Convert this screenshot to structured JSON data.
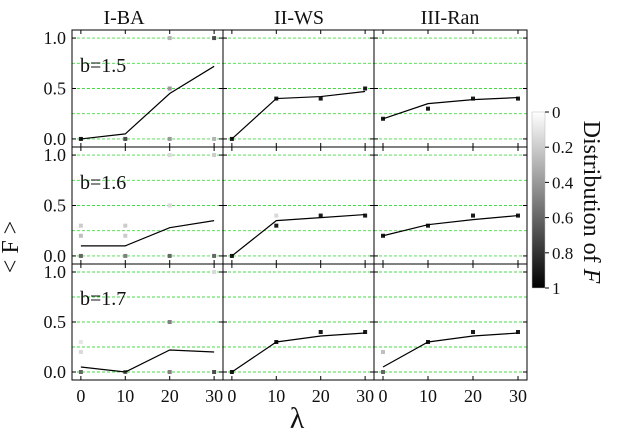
{
  "chart_data": {
    "type": "line",
    "column_titles": [
      "I-BA",
      "II-WS",
      "III-Ran"
    ],
    "row_labels": [
      "b=1.5",
      "b=1.6",
      "b=1.7"
    ],
    "xlabel": "λ",
    "ylabel": "< F >",
    "x_ticks": [
      "0",
      "10",
      "20",
      "30"
    ],
    "y_ticks": [
      "0.0",
      "0.5",
      "1.0"
    ],
    "xlim": [
      -2,
      32
    ],
    "ylim": [
      -0.08,
      1.08
    ],
    "x": [
      0,
      10,
      20,
      30
    ],
    "colorbar": {
      "label_parts": [
        "Distribution of ",
        "F"
      ],
      "ticks": [
        "0",
        "0.2",
        "0.4",
        "0.6",
        "0.8",
        "1"
      ],
      "range": [
        0,
        1
      ],
      "gradient_from": "#ffffff",
      "gradient_to": "#000000"
    },
    "grid_color": "#44dd44",
    "line_color": "#000000",
    "panels": [
      {
        "row": 0,
        "col": 0,
        "line": [
          0.0,
          0.05,
          0.45,
          0.72
        ],
        "points": [
          [
            0,
            0.0,
            0.9
          ],
          [
            10,
            0.0,
            0.7
          ],
          [
            20,
            0.0,
            0.4
          ],
          [
            20,
            1.0,
            0.3
          ],
          [
            20,
            0.5,
            0.4
          ],
          [
            30,
            0.0,
            0.3
          ],
          [
            30,
            1.0,
            0.7
          ]
        ]
      },
      {
        "row": 0,
        "col": 1,
        "line": [
          0.0,
          0.4,
          0.42,
          0.47
        ],
        "points": [
          [
            0,
            0.0,
            0.9
          ],
          [
            10,
            0.4,
            0.9
          ],
          [
            20,
            0.4,
            0.9
          ],
          [
            30,
            0.5,
            0.9
          ]
        ]
      },
      {
        "row": 0,
        "col": 2,
        "line": [
          0.2,
          0.35,
          0.39,
          0.41
        ],
        "points": [
          [
            0,
            0.2,
            0.9
          ],
          [
            10,
            0.3,
            0.9
          ],
          [
            20,
            0.4,
            0.9
          ],
          [
            30,
            0.4,
            0.9
          ]
        ]
      },
      {
        "row": 1,
        "col": 0,
        "line": [
          0.1,
          0.1,
          0.28,
          0.35
        ],
        "points": [
          [
            0,
            0.0,
            0.6
          ],
          [
            0,
            0.2,
            0.25
          ],
          [
            0,
            0.3,
            0.2
          ],
          [
            10,
            0.0,
            0.5
          ],
          [
            10,
            0.2,
            0.2
          ],
          [
            10,
            0.3,
            0.2
          ],
          [
            20,
            0.0,
            0.6
          ],
          [
            20,
            1.0,
            0.15
          ],
          [
            20,
            0.5,
            0.15
          ],
          [
            30,
            0.0,
            0.6
          ],
          [
            30,
            1.0,
            0.2
          ]
        ]
      },
      {
        "row": 1,
        "col": 1,
        "line": [
          0.0,
          0.35,
          0.38,
          0.41
        ],
        "points": [
          [
            0,
            0.0,
            0.9
          ],
          [
            10,
            0.3,
            0.9
          ],
          [
            10,
            0.4,
            0.15
          ],
          [
            20,
            0.4,
            0.9
          ],
          [
            30,
            0.4,
            0.9
          ]
        ]
      },
      {
        "row": 1,
        "col": 2,
        "line": [
          0.2,
          0.31,
          0.36,
          0.4
        ],
        "points": [
          [
            0,
            0.2,
            0.9
          ],
          [
            10,
            0.3,
            0.9
          ],
          [
            20,
            0.4,
            0.9
          ],
          [
            30,
            0.4,
            0.9
          ]
        ]
      },
      {
        "row": 2,
        "col": 0,
        "line": [
          0.05,
          0.0,
          0.22,
          0.2
        ],
        "points": [
          [
            0,
            0.0,
            0.6
          ],
          [
            0,
            0.2,
            0.15
          ],
          [
            0,
            0.3,
            0.1
          ],
          [
            10,
            0.0,
            0.6
          ],
          [
            20,
            0.0,
            0.5
          ],
          [
            20,
            0.5,
            0.5
          ],
          [
            30,
            0.0,
            0.7
          ],
          [
            30,
            1.0,
            0.15
          ]
        ]
      },
      {
        "row": 2,
        "col": 1,
        "line": [
          0.0,
          0.3,
          0.36,
          0.39
        ],
        "points": [
          [
            0,
            0.0,
            0.9
          ],
          [
            10,
            0.3,
            0.9
          ],
          [
            20,
            0.4,
            0.9
          ],
          [
            30,
            0.4,
            0.9
          ]
        ]
      },
      {
        "row": 2,
        "col": 2,
        "line": [
          0.05,
          0.3,
          0.36,
          0.39
        ],
        "points": [
          [
            0,
            0.0,
            0.6
          ],
          [
            0,
            0.2,
            0.25
          ],
          [
            10,
            0.3,
            0.9
          ],
          [
            20,
            0.4,
            0.9
          ],
          [
            30,
            0.4,
            0.9
          ]
        ]
      }
    ]
  }
}
